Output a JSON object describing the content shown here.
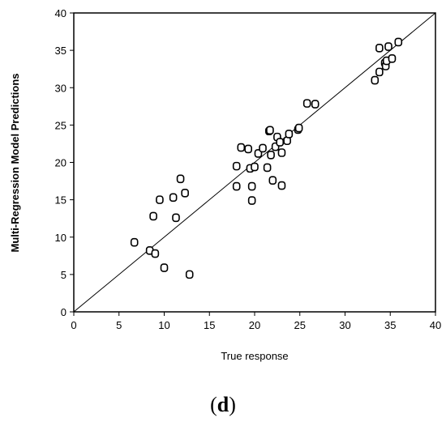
{
  "chart_data": {
    "type": "scatter",
    "xlabel": "True response",
    "ylabel": "Multi-Regression Model Predictions",
    "xlim": [
      0,
      40
    ],
    "ylim": [
      0,
      40
    ],
    "xticks": [
      "0",
      "5",
      "10",
      "15",
      "20",
      "25",
      "30",
      "35",
      "40"
    ],
    "yticks": [
      "0",
      "5",
      "10",
      "15",
      "20",
      "25",
      "30",
      "35",
      "40"
    ],
    "grid": false,
    "reference_line": {
      "from": [
        0,
        0
      ],
      "to": [
        40,
        40
      ]
    },
    "points": [
      [
        6.7,
        9.3
      ],
      [
        8.4,
        8.2
      ],
      [
        9.0,
        7.8
      ],
      [
        10.0,
        5.9
      ],
      [
        12.8,
        5.0
      ],
      [
        8.8,
        12.8
      ],
      [
        9.5,
        15.0
      ],
      [
        11.0,
        15.3
      ],
      [
        11.3,
        12.6
      ],
      [
        11.8,
        17.8
      ],
      [
        12.3,
        15.9
      ],
      [
        18.0,
        16.8
      ],
      [
        18.0,
        19.5
      ],
      [
        18.5,
        22.0
      ],
      [
        19.3,
        21.8
      ],
      [
        19.5,
        19.2
      ],
      [
        19.7,
        16.8
      ],
      [
        19.7,
        14.9
      ],
      [
        20.0,
        19.4
      ],
      [
        20.4,
        21.2
      ],
      [
        20.9,
        21.9
      ],
      [
        21.4,
        19.3
      ],
      [
        21.6,
        24.2
      ],
      [
        21.7,
        24.3
      ],
      [
        21.8,
        21.0
      ],
      [
        22.0,
        17.6
      ],
      [
        22.3,
        22.1
      ],
      [
        22.5,
        23.4
      ],
      [
        22.8,
        22.7
      ],
      [
        23.0,
        21.3
      ],
      [
        23.0,
        16.9
      ],
      [
        23.6,
        22.9
      ],
      [
        23.8,
        23.8
      ],
      [
        24.8,
        24.4
      ],
      [
        24.9,
        24.6
      ],
      [
        25.8,
        27.9
      ],
      [
        26.7,
        27.8
      ],
      [
        33.3,
        31.0
      ],
      [
        33.8,
        32.1
      ],
      [
        33.8,
        35.3
      ],
      [
        34.4,
        33.3
      ],
      [
        34.5,
        32.9
      ],
      [
        34.6,
        33.6
      ],
      [
        34.8,
        35.5
      ],
      [
        35.2,
        33.9
      ],
      [
        35.9,
        36.1
      ]
    ]
  },
  "caption": {
    "open": "(",
    "letter": "d",
    "close": ")"
  }
}
